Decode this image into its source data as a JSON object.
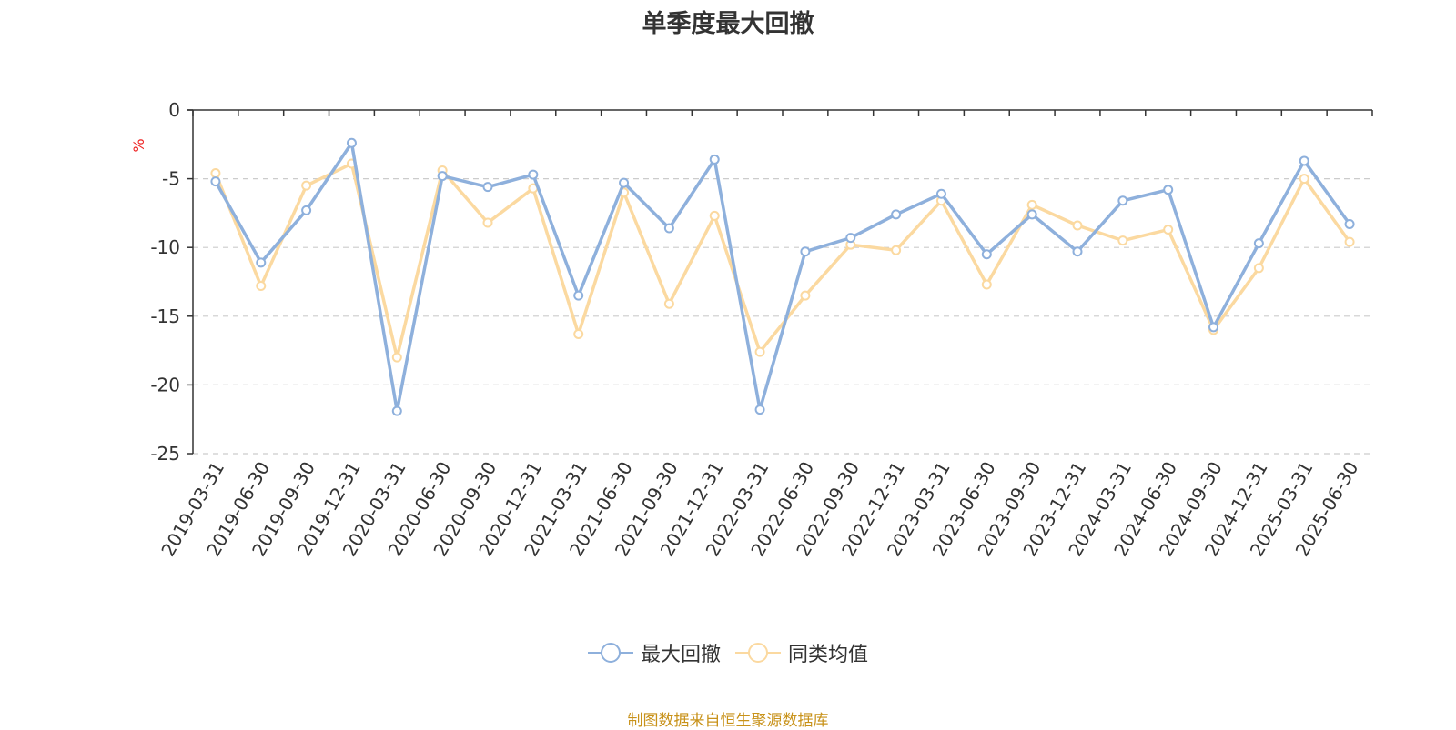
{
  "chart_data": {
    "type": "line",
    "title": "单季度最大回撤",
    "ylabel": "%",
    "xlabel": "",
    "ylim": [
      -25,
      0
    ],
    "yticks": [
      0,
      -5,
      -10,
      -15,
      -20,
      -25
    ],
    "grid": true,
    "legend_position": "bottom-center",
    "categories": [
      "2019-03-31",
      "2019-06-30",
      "2019-09-30",
      "2019-12-31",
      "2020-03-31",
      "2020-06-30",
      "2020-09-30",
      "2020-12-31",
      "2021-03-31",
      "2021-06-30",
      "2021-09-30",
      "2021-12-31",
      "2022-03-31",
      "2022-06-30",
      "2022-09-30",
      "2022-12-31",
      "2023-03-31",
      "2023-06-30",
      "2023-09-30",
      "2023-12-31",
      "2024-03-31",
      "2024-06-30",
      "2024-09-30",
      "2024-12-31",
      "2025-03-31",
      "2025-06-30"
    ],
    "series": [
      {
        "name": "最大回撤",
        "color": "#8eb0dc",
        "values": [
          -5.2,
          -11.1,
          -7.3,
          -2.4,
          -21.9,
          -4.8,
          -5.6,
          -4.7,
          -13.5,
          -5.3,
          -8.6,
          -3.6,
          -21.8,
          -10.3,
          -9.3,
          -7.6,
          -6.1,
          -10.5,
          -7.6,
          -10.3,
          -6.6,
          -5.8,
          -15.8,
          -9.7,
          -3.7,
          -8.3
        ]
      },
      {
        "name": "同类均值",
        "color": "#fbd9a0",
        "values": [
          -4.6,
          -12.8,
          -5.5,
          -3.9,
          -18.0,
          -4.4,
          -8.2,
          -5.7,
          -16.3,
          -6.0,
          -14.1,
          -7.7,
          -17.6,
          -13.5,
          -9.8,
          -10.2,
          -6.6,
          -12.7,
          -6.9,
          -8.4,
          -9.5,
          -8.7,
          -16.0,
          -11.5,
          -5.0,
          -9.6
        ]
      }
    ],
    "source": "制图数据来自恒生聚源数据库"
  }
}
